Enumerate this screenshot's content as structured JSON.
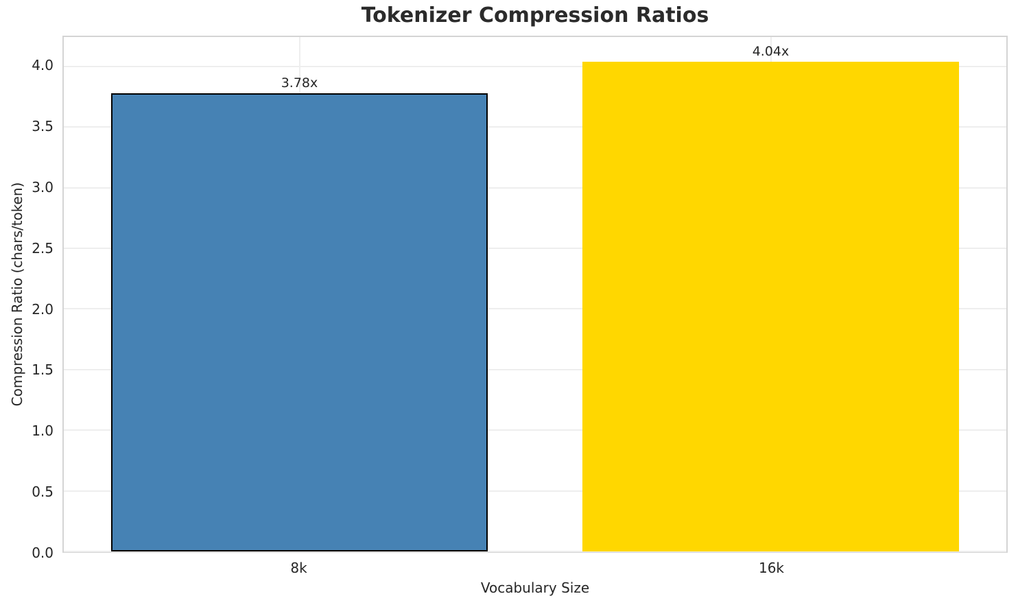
{
  "chart_data": {
    "type": "bar",
    "title": "Tokenizer Compression Ratios",
    "xlabel": "Vocabulary Size",
    "ylabel": "Compression Ratio (chars/token)",
    "categories": [
      "8k",
      "16k"
    ],
    "values": [
      3.78,
      4.04
    ],
    "value_labels": [
      "3.78x",
      "4.04x"
    ],
    "bar_colors": [
      "#4682b4",
      "#ffd700"
    ],
    "bar_edge_colors": [
      "#000000",
      "none"
    ],
    "bar_width_fraction": 0.8,
    "ylim": [
      0,
      4.242
    ],
    "yticks": [
      0,
      0.5,
      1,
      1.5,
      2,
      2.5,
      3,
      3.5,
      4
    ],
    "ytick_labels": [
      "0.0",
      "0.5",
      "1.0",
      "1.5",
      "2.0",
      "2.5",
      "3.0",
      "3.5",
      "4.0"
    ],
    "grid": true,
    "grid_axes": "both",
    "legend_position": "none"
  },
  "colors": {
    "title_text": "#2b2b2b",
    "axis_text": "#262626",
    "grid": "#eeeeee",
    "spine": "#d4d4d4",
    "background": "#ffffff"
  }
}
